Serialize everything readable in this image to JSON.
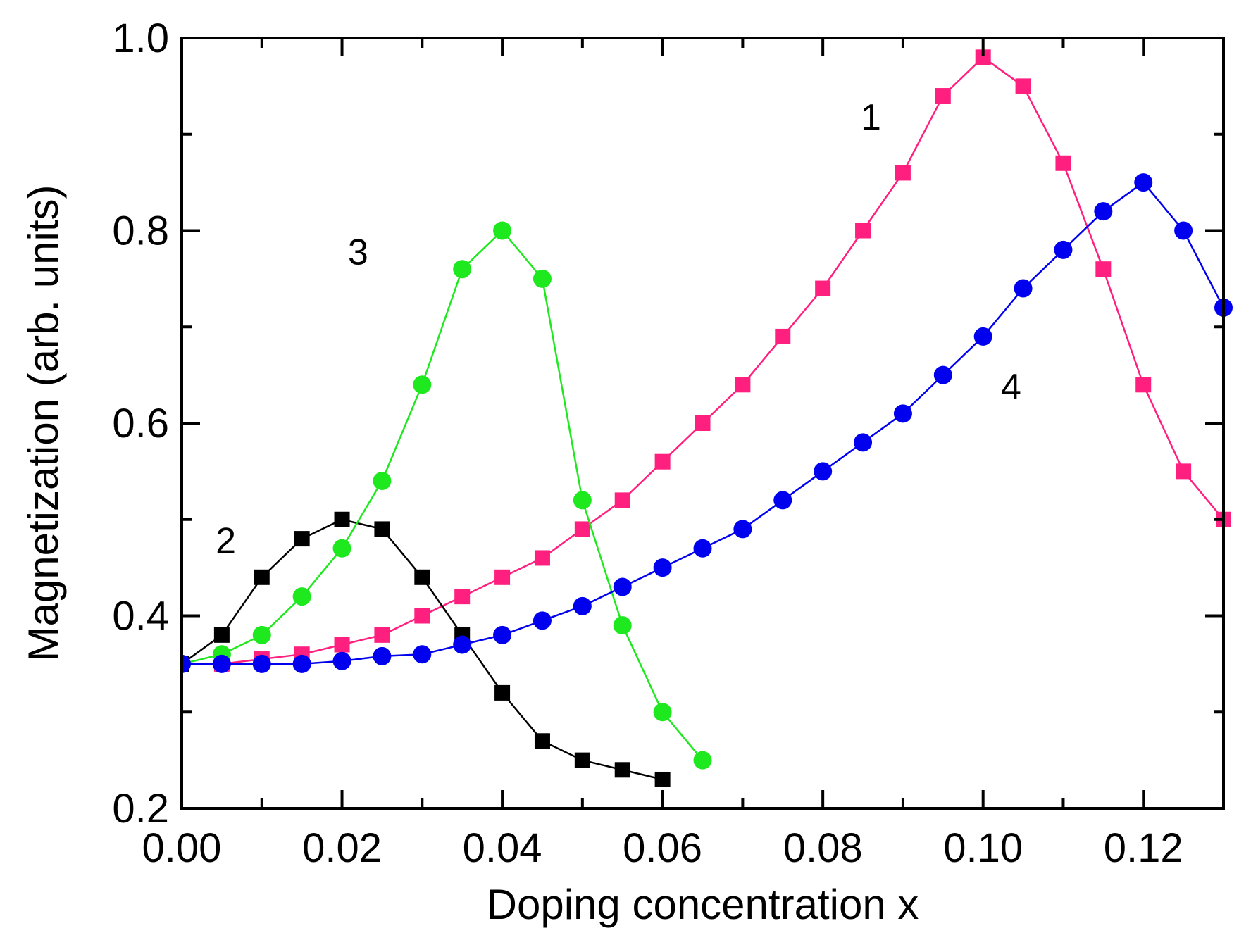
{
  "chart_data": {
    "type": "line",
    "title": "",
    "xlabel": "Doping concentration x",
    "ylabel": "Magnetization  (arb. units)",
    "xlim": [
      0,
      0.13
    ],
    "ylim": [
      0.2,
      1.0
    ],
    "x_ticks": [
      "0.00",
      "0.02",
      "0.04",
      "0.06",
      "0.08",
      "0.10",
      "0.12"
    ],
    "y_ticks": [
      "0.2",
      "0.4",
      "0.6",
      "0.8",
      "1.0"
    ],
    "grid": false,
    "series": [
      {
        "name": "1",
        "label": "1",
        "color": "#ff1f7f",
        "marker": "square",
        "label_at": [
          0.086,
          0.905
        ],
        "x": [
          0.0,
          0.005,
          0.01,
          0.015,
          0.02,
          0.025,
          0.03,
          0.035,
          0.04,
          0.045,
          0.05,
          0.055,
          0.06,
          0.065,
          0.07,
          0.075,
          0.08,
          0.085,
          0.09,
          0.095,
          0.1,
          0.105,
          0.11,
          0.115,
          0.12,
          0.125,
          0.13
        ],
        "values": [
          0.35,
          0.35,
          0.355,
          0.36,
          0.37,
          0.38,
          0.4,
          0.42,
          0.44,
          0.46,
          0.49,
          0.52,
          0.56,
          0.6,
          0.64,
          0.69,
          0.74,
          0.8,
          0.86,
          0.94,
          0.98,
          0.95,
          0.87,
          0.76,
          0.64,
          0.55,
          0.5
        ]
      },
      {
        "name": "2",
        "label": "2",
        "color": "#000000",
        "marker": "square",
        "label_at": [
          0.0055,
          0.465
        ],
        "x": [
          0.0,
          0.005,
          0.01,
          0.015,
          0.02,
          0.025,
          0.03,
          0.035,
          0.04,
          0.045,
          0.05,
          0.055,
          0.06
        ],
        "values": [
          0.35,
          0.38,
          0.44,
          0.48,
          0.5,
          0.49,
          0.44,
          0.38,
          0.32,
          0.27,
          0.25,
          0.24,
          0.23
        ]
      },
      {
        "name": "3",
        "label": "3",
        "color": "#1ee81e",
        "marker": "circle",
        "label_at": [
          0.022,
          0.765
        ],
        "x": [
          0.0,
          0.005,
          0.01,
          0.015,
          0.02,
          0.025,
          0.03,
          0.035,
          0.04,
          0.045,
          0.05,
          0.055,
          0.06,
          0.065
        ],
        "values": [
          0.35,
          0.36,
          0.38,
          0.42,
          0.47,
          0.54,
          0.64,
          0.76,
          0.8,
          0.75,
          0.52,
          0.39,
          0.3,
          0.25
        ]
      },
      {
        "name": "4",
        "label": "4",
        "color": "#0000ee",
        "marker": "circle",
        "label_at": [
          0.1035,
          0.625
        ],
        "x": [
          0.0,
          0.005,
          0.01,
          0.015,
          0.02,
          0.025,
          0.03,
          0.035,
          0.04,
          0.045,
          0.05,
          0.055,
          0.06,
          0.065,
          0.07,
          0.075,
          0.08,
          0.085,
          0.09,
          0.095,
          0.1,
          0.105,
          0.11,
          0.115,
          0.12,
          0.125,
          0.13
        ],
        "values": [
          0.35,
          0.35,
          0.35,
          0.35,
          0.353,
          0.358,
          0.36,
          0.37,
          0.38,
          0.395,
          0.41,
          0.43,
          0.45,
          0.47,
          0.49,
          0.52,
          0.55,
          0.58,
          0.61,
          0.65,
          0.69,
          0.74,
          0.78,
          0.82,
          0.85,
          0.8,
          0.72
        ]
      }
    ]
  }
}
